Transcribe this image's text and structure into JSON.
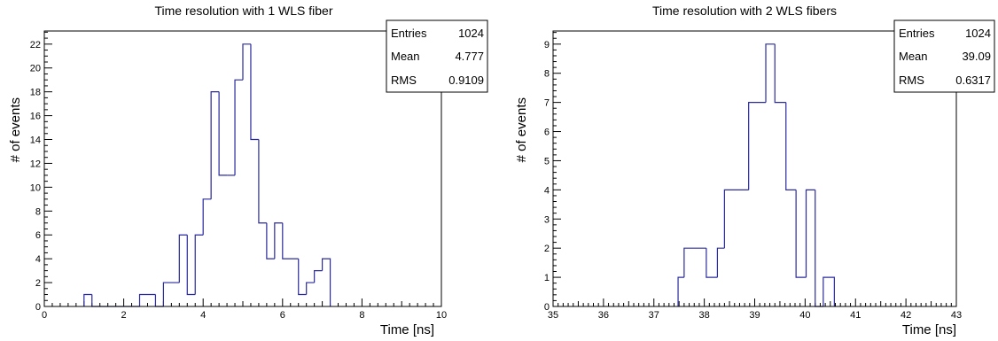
{
  "colors": {
    "histogram_line": "#2a2a9e",
    "frame": "#000000",
    "background": "#ffffff"
  },
  "chart_data": [
    {
      "type": "bar",
      "style": "step-histogram",
      "title": "Time resolution with 1 WLS fiber",
      "xlabel": "Time [ns]",
      "ylabel": "# of events",
      "xlim": [
        0,
        10
      ],
      "ylim": [
        0,
        23.1
      ],
      "x_major_ticks": [
        0,
        2,
        4,
        6,
        8,
        10
      ],
      "y_major_ticks": [
        0,
        2,
        4,
        6,
        8,
        10,
        12,
        14,
        16,
        18,
        20,
        22
      ],
      "bins": [
        {
          "x0": 1.0,
          "x1": 1.2,
          "value": 1
        },
        {
          "x0": 1.2,
          "x1": 2.4,
          "value": 0
        },
        {
          "x0": 2.4,
          "x1": 2.8,
          "value": 1
        },
        {
          "x0": 2.8,
          "x1": 3.0,
          "value": 0
        },
        {
          "x0": 3.0,
          "x1": 3.4,
          "value": 2
        },
        {
          "x0": 3.4,
          "x1": 3.6,
          "value": 6
        },
        {
          "x0": 3.6,
          "x1": 3.8,
          "value": 1
        },
        {
          "x0": 3.8,
          "x1": 4.0,
          "value": 6
        },
        {
          "x0": 4.0,
          "x1": 4.2,
          "value": 9
        },
        {
          "x0": 4.2,
          "x1": 4.4,
          "value": 18
        },
        {
          "x0": 4.4,
          "x1": 4.6,
          "value": 11
        },
        {
          "x0": 4.6,
          "x1": 4.8,
          "value": 11
        },
        {
          "x0": 4.8,
          "x1": 5.0,
          "value": 19
        },
        {
          "x0": 5.0,
          "x1": 5.2,
          "value": 22
        },
        {
          "x0": 5.2,
          "x1": 5.4,
          "value": 14
        },
        {
          "x0": 5.4,
          "x1": 5.6,
          "value": 7
        },
        {
          "x0": 5.6,
          "x1": 5.8,
          "value": 4
        },
        {
          "x0": 5.8,
          "x1": 6.0,
          "value": 7
        },
        {
          "x0": 6.0,
          "x1": 6.4,
          "value": 4
        },
        {
          "x0": 6.4,
          "x1": 6.6,
          "value": 1
        },
        {
          "x0": 6.6,
          "x1": 6.8,
          "value": 2
        },
        {
          "x0": 6.8,
          "x1": 7.0,
          "value": 3
        },
        {
          "x0": 7.0,
          "x1": 7.2,
          "value": 4
        }
      ],
      "stats": [
        {
          "label": "Entries",
          "value": "1024"
        },
        {
          "label": "Mean",
          "value": "4.777"
        },
        {
          "label": "RMS",
          "value": "0.9109"
        }
      ]
    },
    {
      "type": "bar",
      "style": "step-histogram",
      "title": "Time resolution with 2 WLS fibers",
      "xlabel": "Time [ns]",
      "ylabel": "# of events",
      "xlim": [
        35,
        43
      ],
      "ylim": [
        0,
        9.45
      ],
      "x_major_ticks": [
        35,
        36,
        37,
        38,
        39,
        40,
        41,
        42,
        43
      ],
      "y_major_ticks": [
        0,
        1,
        2,
        3,
        4,
        5,
        6,
        7,
        8,
        9
      ],
      "bins": [
        {
          "x0": 37.48,
          "x1": 37.6,
          "value": 1
        },
        {
          "x0": 37.6,
          "x1": 38.04,
          "value": 2
        },
        {
          "x0": 38.04,
          "x1": 38.26,
          "value": 1
        },
        {
          "x0": 38.26,
          "x1": 38.4,
          "value": 2
        },
        {
          "x0": 38.4,
          "x1": 38.88,
          "value": 4
        },
        {
          "x0": 38.88,
          "x1": 39.22,
          "value": 7
        },
        {
          "x0": 39.22,
          "x1": 39.4,
          "value": 9
        },
        {
          "x0": 39.4,
          "x1": 39.62,
          "value": 7
        },
        {
          "x0": 39.62,
          "x1": 39.82,
          "value": 4
        },
        {
          "x0": 39.82,
          "x1": 40.02,
          "value": 1
        },
        {
          "x0": 40.02,
          "x1": 40.2,
          "value": 4
        },
        {
          "x0": 40.2,
          "x1": 40.36,
          "value": 0
        },
        {
          "x0": 40.36,
          "x1": 40.58,
          "value": 1
        }
      ],
      "stats": [
        {
          "label": "Entries",
          "value": "1024"
        },
        {
          "label": "Mean",
          "value": "39.09"
        },
        {
          "label": "RMS",
          "value": "0.6317"
        }
      ]
    }
  ]
}
